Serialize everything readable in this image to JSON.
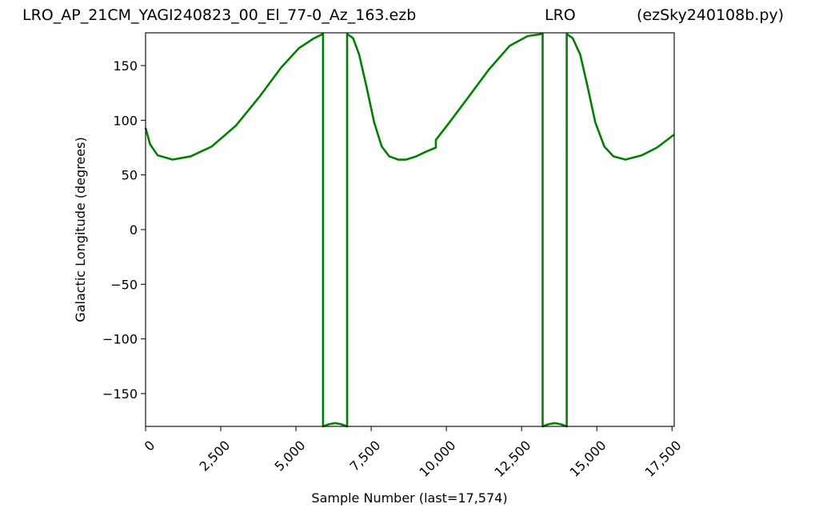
{
  "title": {
    "left": "LRO_AP_21CM_YAGI240823_00_El_77-0_Az_163.ezb",
    "center": "LRO",
    "right": "(ezSky240108b.py)"
  },
  "chart_data": {
    "type": "line",
    "xlabel": "Sample Number (last=17,574)",
    "ylabel": "Galactic Longitude (degrees)",
    "xlim": [
      0,
      17574
    ],
    "ylim": [
      -180,
      180
    ],
    "x_ticks": [
      0,
      2500,
      5000,
      7500,
      10000,
      12500,
      15000,
      17500
    ],
    "x_tick_labels": [
      "0",
      "2,500",
      "5,000",
      "7,500",
      "10,000",
      "12,500",
      "15,000",
      "17,500"
    ],
    "y_ticks": [
      150,
      100,
      50,
      0,
      -50,
      -100,
      -150
    ],
    "y_tick_labels": [
      "150",
      "100",
      "50",
      "0",
      "−50",
      "−100",
      "−150"
    ],
    "grid": false,
    "series": [
      {
        "color": "#008000",
        "x": [
          0,
          150,
          400,
          900,
          1500,
          2200,
          3000,
          3800,
          4500,
          5100,
          5600,
          5900,
          5900,
          6100,
          6300,
          6500,
          6700,
          6700,
          6900,
          7100,
          7350,
          7600,
          7850,
          8100,
          8400,
          8650,
          9000,
          9300,
          9650,
          9650,
          10100,
          10700,
          11400,
          12100,
          12700,
          13200,
          13200,
          13400,
          13600,
          13800,
          14000,
          14000,
          14200,
          14450,
          14700,
          14950,
          15250,
          15550,
          15950,
          16500,
          17000,
          17574
        ],
        "y": [
          93,
          78,
          68,
          64,
          67,
          76,
          95,
          122,
          148,
          166,
          175,
          179,
          -180,
          -178,
          -177,
          -178,
          -180,
          179,
          175,
          160,
          130,
          98,
          76,
          67,
          64,
          64,
          67,
          71,
          75,
          82,
          98,
          120,
          146,
          168,
          177,
          179,
          -180,
          -178,
          -177,
          -178,
          -180,
          179,
          175,
          160,
          130,
          98,
          76,
          67,
          64,
          68,
          75,
          87
        ]
      }
    ]
  }
}
